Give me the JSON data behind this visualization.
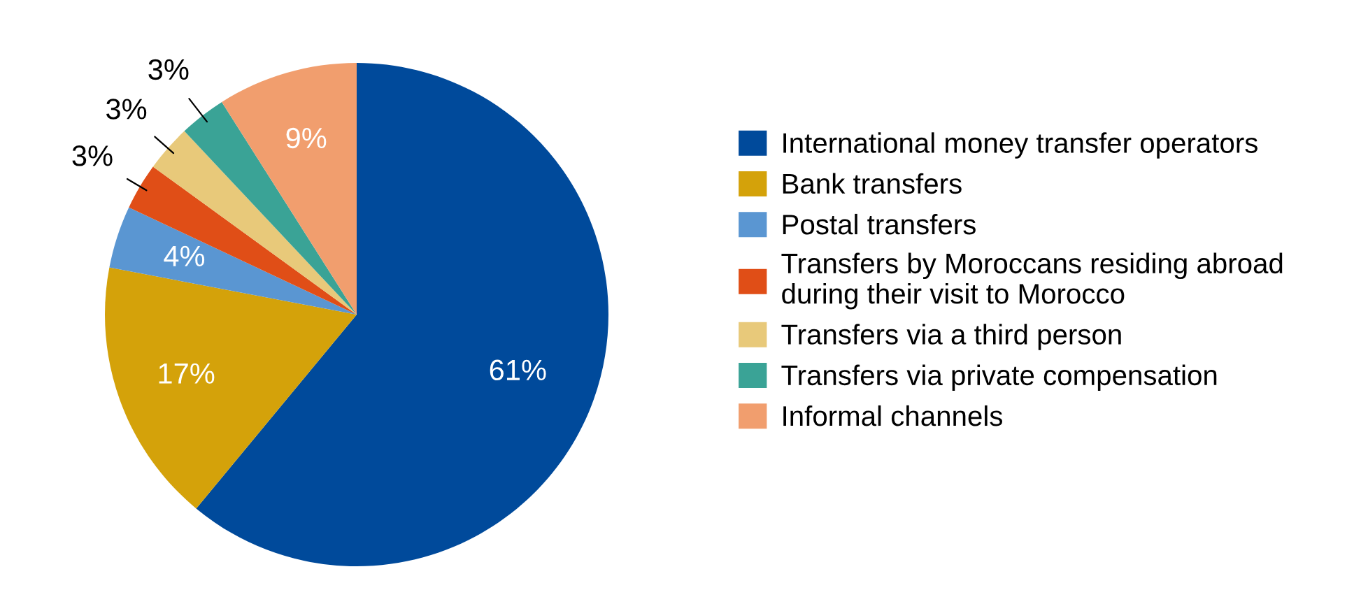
{
  "chart_data": {
    "type": "pie",
    "categories": [
      "International money transfer operators",
      "Bank transfers",
      "Postal transfers",
      "Transfers by Moroccans residing abroad during their visit to Morocco",
      "Transfers via a third person",
      "Transfers via private compensation",
      "Informal channels"
    ],
    "values": [
      61,
      17,
      4,
      3,
      3,
      3,
      9
    ],
    "colors": [
      "#004a9b",
      "#d4a20a",
      "#5a96d2",
      "#e04e17",
      "#e8c97a",
      "#3aa396",
      "#f19e6e"
    ],
    "value_labels": [
      "61%",
      "17%",
      "4%",
      "3%",
      "3%",
      "3%",
      "9%"
    ],
    "legend": "right"
  }
}
